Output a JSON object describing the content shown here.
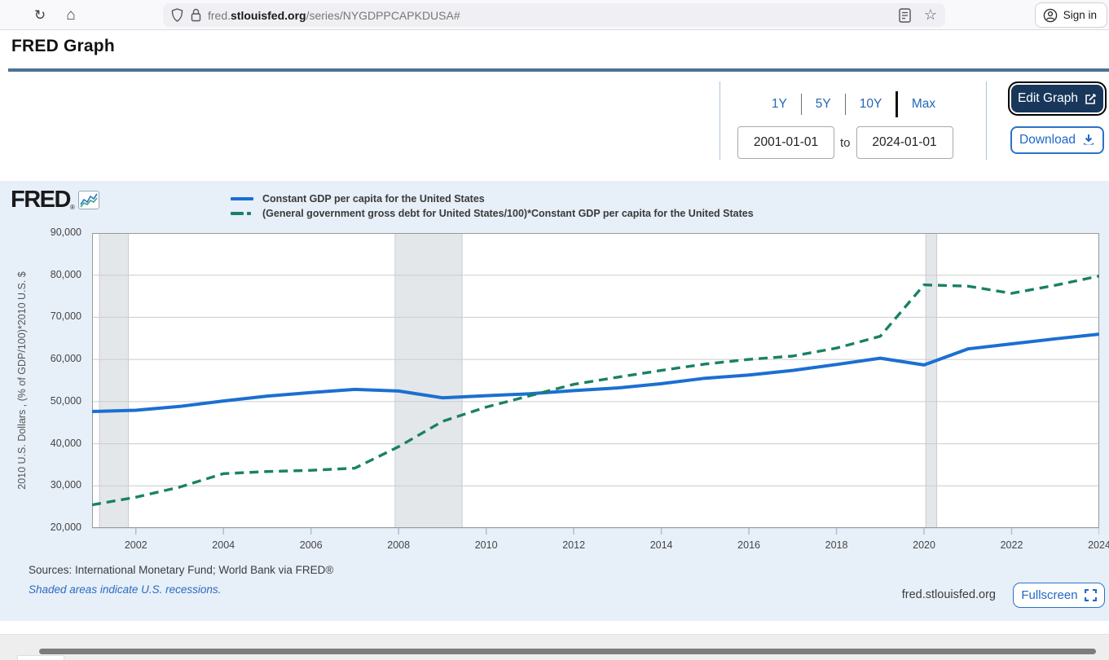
{
  "browser": {
    "url_prefix": "fred.",
    "url_domain": "stlouisfed.org",
    "url_path": "/series/NYGDPPCAPKDUSA#",
    "sign_in_label": "Sign in"
  },
  "page": {
    "title": "FRED Graph"
  },
  "controls": {
    "ranges": [
      "1Y",
      "5Y",
      "10Y",
      "Max"
    ],
    "date_from": "2001-01-01",
    "to_label": "to",
    "date_to": "2024-01-01",
    "edit_graph_label": "Edit Graph",
    "download_label": "Download"
  },
  "graph": {
    "brand": "FRED",
    "registered_mark": "®",
    "y_axis_label": "2010 U.S. Dollars , (% of GDP/100)*2010 U.S. $",
    "sources": "Sources: International Monetary Fund; World Bank via FRED®",
    "recession_note": "Shaded areas indicate U.S. recessions.",
    "watermark": "fred.stlouisfed.org",
    "fullscreen_label": "Fullscreen"
  },
  "chart_data": {
    "type": "line",
    "x": [
      2001,
      2002,
      2003,
      2004,
      2005,
      2006,
      2007,
      2008,
      2009,
      2010,
      2011,
      2012,
      2013,
      2014,
      2015,
      2016,
      2017,
      2018,
      2019,
      2020,
      2021,
      2022,
      2023,
      2024
    ],
    "series": [
      {
        "name": "Constant GDP per capita for the United States",
        "color": "#1b6fd1",
        "style": "solid",
        "values": [
          47650,
          47950,
          48850,
          50150,
          51300,
          52150,
          52900,
          52500,
          50900,
          51400,
          51850,
          52600,
          53250,
          54250,
          55550,
          56300,
          57400,
          58800,
          60300,
          58700,
          62500,
          63700,
          64900,
          66000
        ]
      },
      {
        "name": "(General government gross debt for United States/100)*Constant GDP per capita for the United States",
        "color": "#1a8066",
        "style": "dashed",
        "values": [
          25500,
          27300,
          29700,
          32900,
          33400,
          33700,
          34200,
          39300,
          45300,
          48700,
          51400,
          54100,
          55800,
          57400,
          58900,
          60000,
          60800,
          62700,
          65500,
          77700,
          77400,
          75700,
          77600,
          79800
        ]
      }
    ],
    "xlim": [
      2001,
      2024
    ],
    "ylim": [
      20000,
      90000
    ],
    "xticks": [
      2002,
      2004,
      2006,
      2008,
      2010,
      2012,
      2014,
      2016,
      2018,
      2020,
      2022,
      2024
    ],
    "yticks": [
      20000,
      30000,
      40000,
      50000,
      60000,
      70000,
      80000,
      90000
    ],
    "recessions": [
      [
        2001.17,
        2001.83
      ],
      [
        2007.92,
        2009.45
      ],
      [
        2020.04,
        2020.29
      ]
    ],
    "grid": "horizontal",
    "legend_position": "top-left",
    "colors": {
      "plot_bg": "#ffffff",
      "grid": "#cccccc",
      "border": "#999999",
      "recession": "#e4e7ea",
      "recession_edge": "#c9ccd0",
      "tick": "#a9c0d8"
    }
  }
}
